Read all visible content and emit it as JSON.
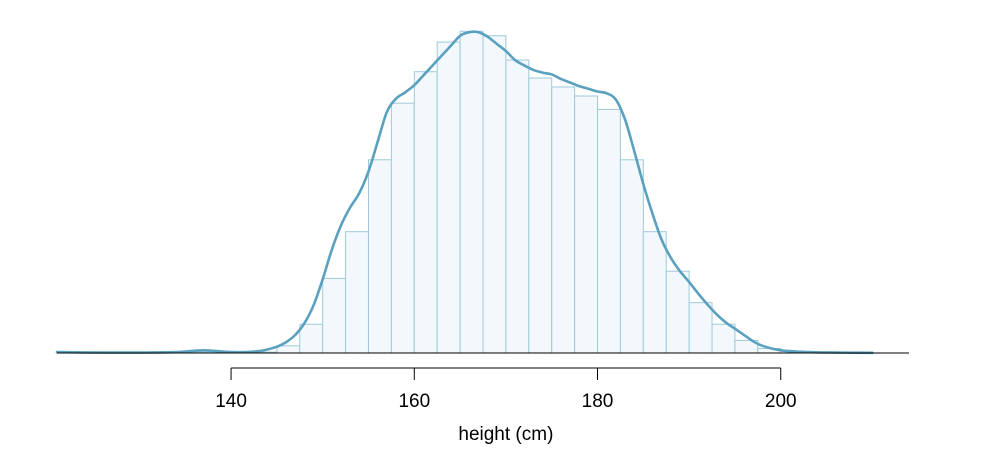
{
  "chart_data": {
    "type": "histogram",
    "title": "",
    "xlabel": "height (cm)",
    "ylabel": "",
    "xlim": [
      121,
      214
    ],
    "ylim": [
      0,
      0.0365
    ],
    "x_ticks": [
      140,
      160,
      180,
      200
    ],
    "x_tick_labels": [
      "140",
      "160",
      "180",
      "200"
    ],
    "y_axis_visible": false,
    "grid": false,
    "legend": "none",
    "colors": {
      "bar_fill": "#f2f8fb",
      "bar_stroke": "#9ecadb",
      "density_line": "#5aa0bf",
      "axis": "#000000"
    },
    "bins": {
      "edges": [
        135,
        137.5,
        140,
        142.5,
        145,
        147.5,
        150,
        152.5,
        155,
        157.5,
        160,
        162.5,
        165,
        167.5,
        170,
        172.5,
        175,
        177.5,
        180,
        182.5,
        185,
        187.5,
        190,
        192.5,
        195,
        197.5,
        200,
        202.5,
        205,
        207.5,
        210
      ],
      "densities": [
        0.0001,
        0.0001,
        0.0001,
        0.0001,
        0.0008,
        0.0032,
        0.0083,
        0.0135,
        0.0215,
        0.0278,
        0.0313,
        0.0346,
        0.0358,
        0.0353,
        0.0326,
        0.0306,
        0.0296,
        0.0286,
        0.0271,
        0.0215,
        0.0135,
        0.0091,
        0.0056,
        0.0032,
        0.0014,
        0.0005,
        0.0002,
        0.0001,
        0.0001,
        0.0001
      ]
    },
    "density_curve": {
      "x": [
        121,
        126,
        130,
        134,
        137,
        140,
        143,
        145,
        146,
        147,
        148,
        149,
        150,
        151,
        152,
        153,
        154,
        155,
        156,
        157,
        158,
        159,
        160,
        161,
        162,
        163,
        164,
        165,
        166,
        167,
        168,
        169,
        170,
        171,
        172,
        173,
        174,
        175,
        176,
        177,
        178,
        179,
        180,
        181,
        182,
        183,
        184,
        185,
        186,
        187,
        188,
        189,
        190,
        191,
        192,
        193,
        194,
        195,
        196,
        197,
        198,
        200,
        203,
        206,
        210
      ],
      "y": [
        0.0001,
        5e-05,
        5e-05,
        0.0001,
        0.0003,
        0.0001,
        0.0002,
        0.0007,
        0.0012,
        0.002,
        0.0033,
        0.0053,
        0.0082,
        0.0115,
        0.0142,
        0.0162,
        0.0178,
        0.0202,
        0.0235,
        0.0268,
        0.0283,
        0.029,
        0.0298,
        0.0309,
        0.032,
        0.0331,
        0.0342,
        0.0353,
        0.0357,
        0.0357,
        0.0352,
        0.0344,
        0.0336,
        0.0326,
        0.032,
        0.0315,
        0.0312,
        0.031,
        0.0305,
        0.0301,
        0.0297,
        0.0294,
        0.0291,
        0.0289,
        0.0282,
        0.026,
        0.0225,
        0.0188,
        0.0155,
        0.0126,
        0.0106,
        0.0091,
        0.0079,
        0.0066,
        0.0054,
        0.0043,
        0.0034,
        0.0027,
        0.002,
        0.0013,
        0.0008,
        0.0003,
        0.0001,
        5e-05,
        2e-05
      ]
    }
  }
}
